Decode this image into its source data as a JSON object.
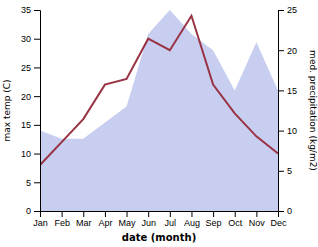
{
  "chart_data": {
    "type": "line",
    "xlabel": "date (month)",
    "ylabel": "max temp (C)",
    "y2label": "med. precipitation (kg/m2)",
    "categories": [
      "Jan",
      "Feb",
      "Mar",
      "Apr",
      "May",
      "Jun",
      "Jul",
      "Aug",
      "Sep",
      "Oct",
      "Nov",
      "Dec"
    ],
    "ylim": [
      0,
      35
    ],
    "yticks": [
      0,
      5,
      10,
      15,
      20,
      25,
      30,
      35
    ],
    "y2lim": [
      0,
      25
    ],
    "y2ticks": [
      0,
      5,
      10,
      15,
      20,
      25
    ],
    "series": [
      {
        "type": "area",
        "axis": "y2",
        "color": "#aab4e8",
        "values": [
          10,
          9,
          9,
          11,
          13,
          22,
          25,
          22,
          20,
          15,
          21,
          15
        ]
      },
      {
        "type": "line",
        "color": "#993344",
        "values": [
          8,
          12,
          16,
          22,
          23,
          30,
          28,
          34,
          22,
          17,
          13,
          10
        ]
      }
    ]
  }
}
